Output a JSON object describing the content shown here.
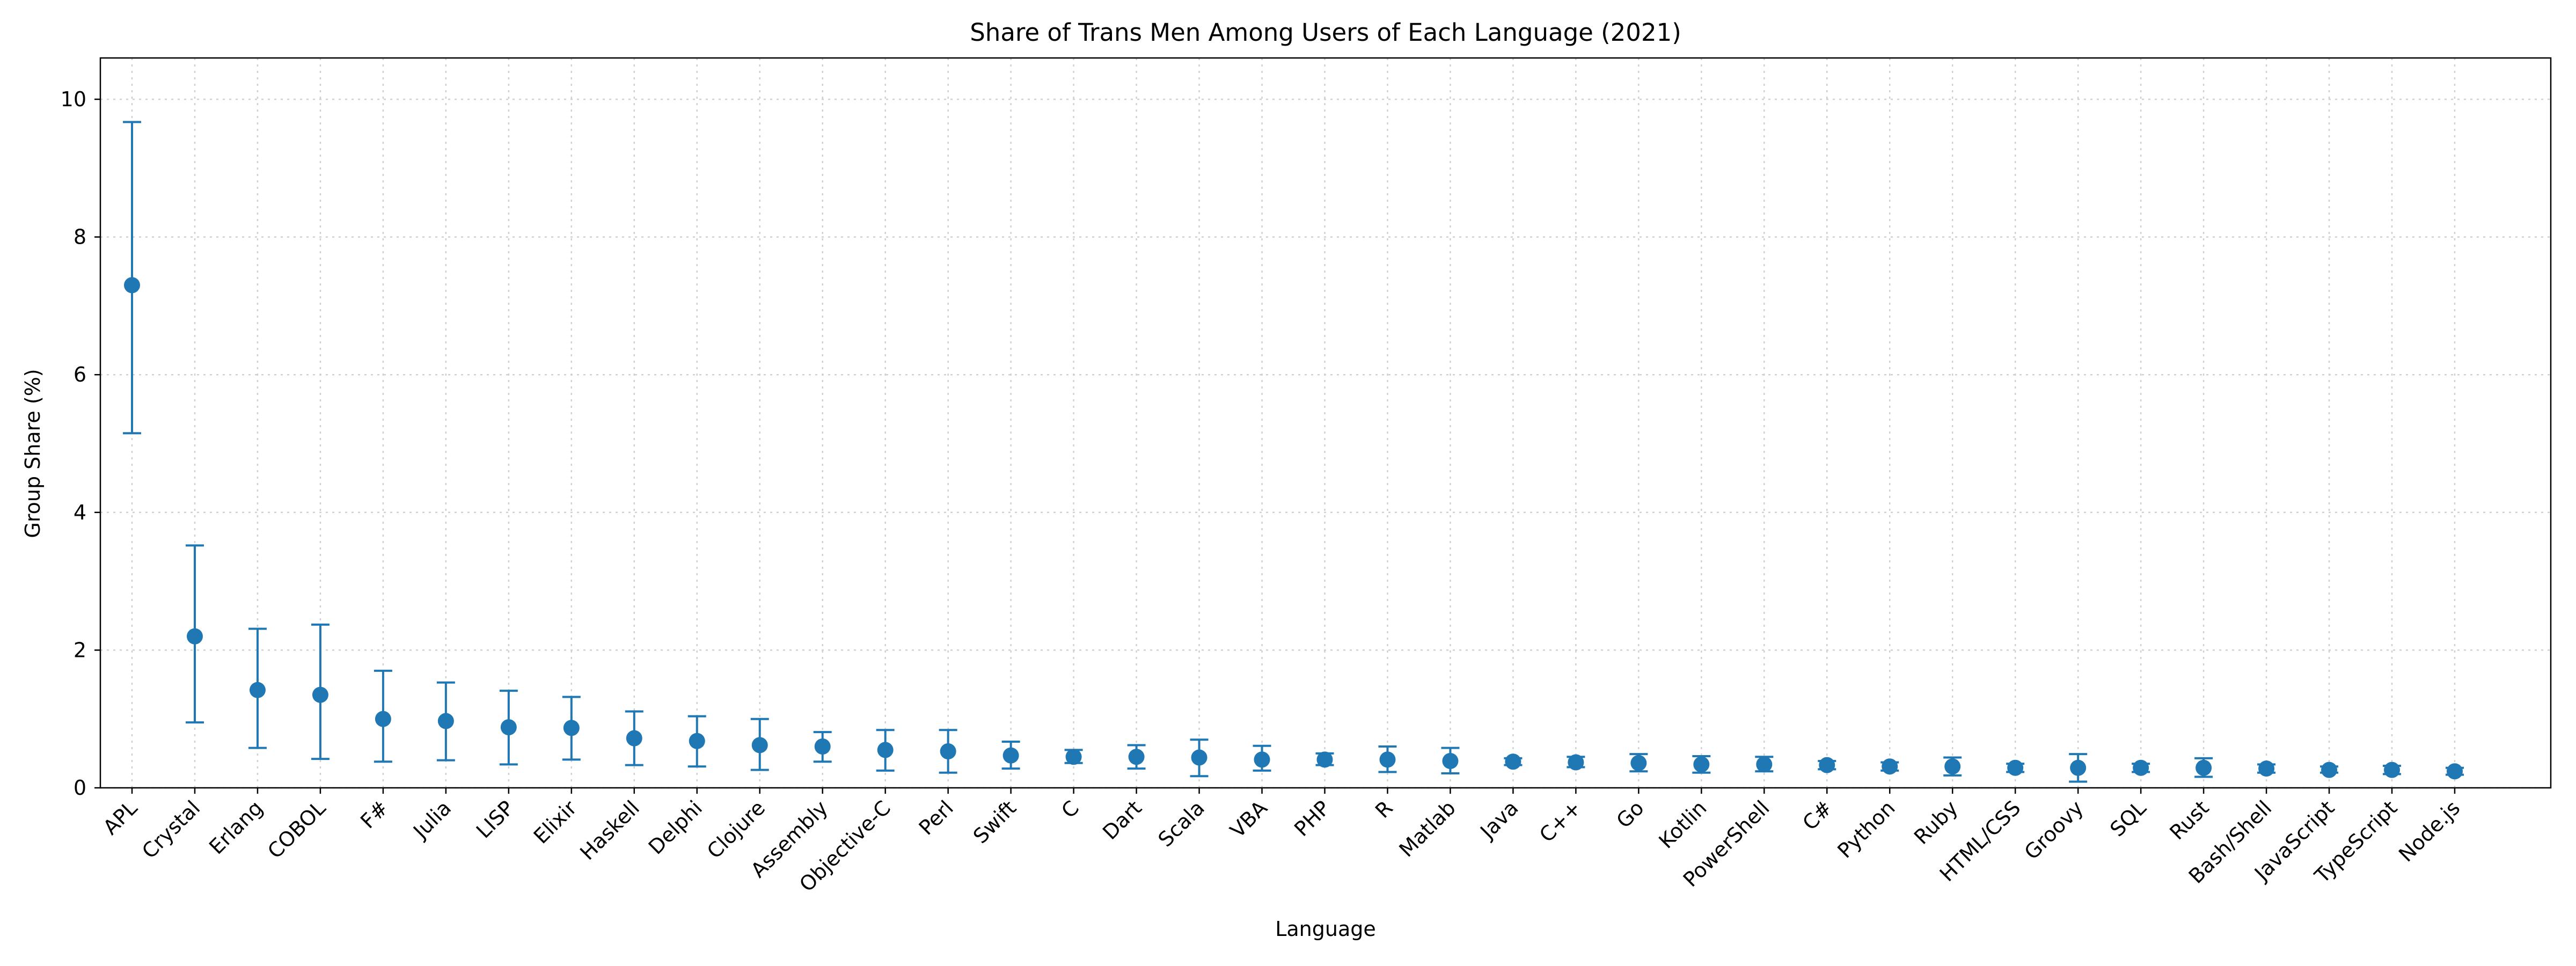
{
  "chart_data": {
    "type": "scatter",
    "title": "Share of Trans Men Among Users of Each Language (2021)",
    "xlabel": "Language",
    "ylabel": "Group Share (%)",
    "ylim": [
      0,
      10.6
    ],
    "yticks": [
      "0",
      "2",
      "4",
      "6",
      "8",
      "10"
    ],
    "grid": true,
    "marker_color": "#1f77b4",
    "categories": [
      "APL",
      "Crystal",
      "Erlang",
      "COBOL",
      "F#",
      "Julia",
      "LISP",
      "Elixir",
      "Haskell",
      "Delphi",
      "Clojure",
      "Assembly",
      "Objective-C",
      "Perl",
      "Swift",
      "C",
      "Dart",
      "Scala",
      "VBA",
      "PHP",
      "R",
      "Matlab",
      "Java",
      "C++",
      "Go",
      "Kotlin",
      "PowerShell",
      "C#",
      "Python",
      "Ruby",
      "HTML/CSS",
      "Groovy",
      "SQL",
      "Rust",
      "Bash/Shell",
      "JavaScript",
      "TypeScript",
      "Node.js"
    ],
    "values": [
      7.3,
      2.2,
      1.42,
      1.35,
      1.0,
      0.97,
      0.88,
      0.87,
      0.72,
      0.68,
      0.62,
      0.6,
      0.55,
      0.53,
      0.47,
      0.45,
      0.45,
      0.44,
      0.41,
      0.41,
      0.41,
      0.39,
      0.38,
      0.37,
      0.36,
      0.34,
      0.34,
      0.33,
      0.31,
      0.31,
      0.29,
      0.29,
      0.29,
      0.29,
      0.28,
      0.26,
      0.26,
      0.24
    ],
    "lower": [
      5.15,
      0.95,
      0.58,
      0.42,
      0.38,
      0.4,
      0.34,
      0.41,
      0.33,
      0.31,
      0.26,
      0.38,
      0.25,
      0.22,
      0.28,
      0.36,
      0.28,
      0.17,
      0.25,
      0.33,
      0.23,
      0.21,
      0.33,
      0.3,
      0.24,
      0.22,
      0.24,
      0.27,
      0.25,
      0.18,
      0.23,
      0.09,
      0.23,
      0.16,
      0.22,
      0.22,
      0.2,
      0.19
    ],
    "upper": [
      9.67,
      3.52,
      2.31,
      2.37,
      1.7,
      1.53,
      1.41,
      1.32,
      1.11,
      1.04,
      1.0,
      0.81,
      0.84,
      0.84,
      0.67,
      0.55,
      0.62,
      0.7,
      0.61,
      0.5,
      0.6,
      0.58,
      0.43,
      0.45,
      0.49,
      0.46,
      0.45,
      0.39,
      0.37,
      0.44,
      0.35,
      0.49,
      0.35,
      0.43,
      0.34,
      0.31,
      0.32,
      0.29
    ]
  }
}
